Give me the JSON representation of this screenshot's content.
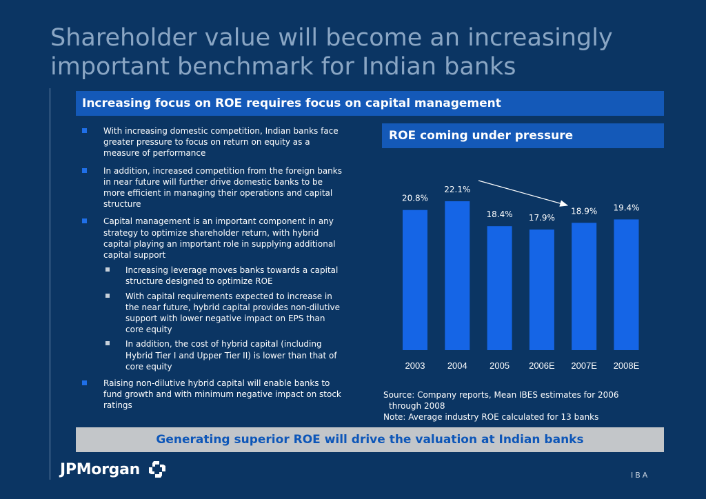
{
  "page": {
    "title": "Shareholder value will become an increasingly important benchmark for Indian banks",
    "section_header": "Increasing focus on ROE requires focus on capital management",
    "chart_header": "ROE coming under pressure",
    "footer_banner": "Generating superior ROE will drive the valuation at Indian banks",
    "logo_text": "JPMorgan",
    "page_tag": "IBA"
  },
  "bullets": [
    {
      "text": "With increasing domestic competition, Indian banks face greater pressure to focus on return on equity as a measure of performance"
    },
    {
      "text": "In addition, increased competition from the foreign banks in near future will further drive domestic banks to be more efficient in managing their operations and capital structure"
    },
    {
      "text": "Capital management is an important component in any strategy to optimize shareholder return, with hybrid capital playing an important role in supplying additional capital support"
    },
    {
      "text": "Increasing leverage moves banks towards a capital structure designed to optimize ROE"
    },
    {
      "text": "With capital requirements expected to increase in the near future, hybrid capital provides non-dilutive support with lower negative impact on EPS than core equity"
    },
    {
      "text": "In addition, the cost of hybrid capital (including Hybrid Tier I and Upper Tier II) is lower than that of core equity"
    },
    {
      "text": "Raising non-dilutive hybrid capital will enable banks to fund growth and with minimum negative impact on stock ratings"
    }
  ],
  "notes": {
    "source_line1": "Source: Company reports, Mean IBES estimates for 2006",
    "source_line2": "through 2008",
    "note": "Note: Average industry ROE calculated for 13 banks"
  },
  "colors": {
    "background": "#0b3563",
    "bar": "#1565e6",
    "header_bar": "#1459b8",
    "footer_bar": "#c3c6c9",
    "footer_text": "#0d56b8"
  },
  "chart_data": {
    "type": "bar",
    "categories": [
      "2003",
      "2004",
      "2005",
      "2006E",
      "2007E",
      "2008E"
    ],
    "values": [
      20.8,
      22.1,
      18.4,
      17.9,
      18.9,
      19.4
    ],
    "value_labels": [
      "20.8%",
      "22.1%",
      "18.4%",
      "17.9%",
      "18.9%",
      "19.4%"
    ],
    "ylim": [
      0,
      22.1
    ],
    "grid": false,
    "legend": "none",
    "annotation": "downward trend arrow from 2004 to 2007E"
  }
}
